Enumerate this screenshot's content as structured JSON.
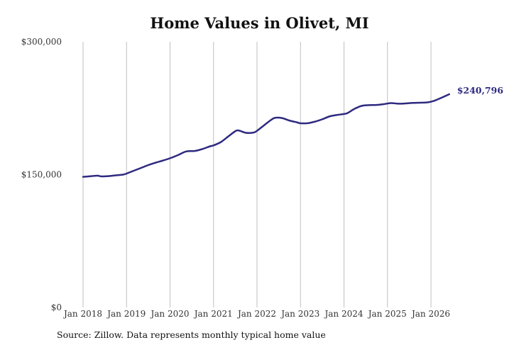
{
  "colors": {
    "line": "#2e2a80",
    "grid": "#bfbfbf"
  },
  "chart_data": {
    "type": "line",
    "title": "Home Values in Olivet, MI",
    "xlabel": "",
    "ylabel": "",
    "ylim": [
      0,
      300000
    ],
    "y_ticks": [
      {
        "value": 0,
        "label": "$0"
      },
      {
        "value": 150000,
        "label": "$150,000"
      },
      {
        "value": 300000,
        "label": "$300,000"
      }
    ],
    "x_ticks": [
      {
        "value": 2018,
        "label": "Jan 2018"
      },
      {
        "value": 2019,
        "label": "Jan 2019"
      },
      {
        "value": 2020,
        "label": "Jan 2020"
      },
      {
        "value": 2021,
        "label": "Jan 2021"
      },
      {
        "value": 2022,
        "label": "Jan 2022"
      },
      {
        "value": 2023,
        "label": "Jan 2023"
      },
      {
        "value": 2024,
        "label": "Jan 2024"
      },
      {
        "value": 2025,
        "label": "Jan 2025"
      },
      {
        "value": 2026,
        "label": "Jan 2026"
      }
    ],
    "grid": "vertical",
    "end_label": "$240,796",
    "series": [
      {
        "points": [
          [
            2018.0,
            147500
          ],
          [
            2018.17,
            148200
          ],
          [
            2018.33,
            148800
          ],
          [
            2018.42,
            148000
          ],
          [
            2018.58,
            148300
          ],
          [
            2018.75,
            149200
          ],
          [
            2018.92,
            150000
          ],
          [
            2019.0,
            151200
          ],
          [
            2019.17,
            154500
          ],
          [
            2019.33,
            157500
          ],
          [
            2019.5,
            160800
          ],
          [
            2019.67,
            163500
          ],
          [
            2019.83,
            165800
          ],
          [
            2020.0,
            168500
          ],
          [
            2020.17,
            171800
          ],
          [
            2020.33,
            175500
          ],
          [
            2020.42,
            176500
          ],
          [
            2020.58,
            176800
          ],
          [
            2020.75,
            179000
          ],
          [
            2020.92,
            182000
          ],
          [
            2021.0,
            183000
          ],
          [
            2021.17,
            186800
          ],
          [
            2021.33,
            192800
          ],
          [
            2021.5,
            199000
          ],
          [
            2021.58,
            199800
          ],
          [
            2021.75,
            197200
          ],
          [
            2021.92,
            197500
          ],
          [
            2022.0,
            199500
          ],
          [
            2022.17,
            206000
          ],
          [
            2022.33,
            212000
          ],
          [
            2022.42,
            214200
          ],
          [
            2022.58,
            213800
          ],
          [
            2022.75,
            211000
          ],
          [
            2022.92,
            209000
          ],
          [
            2023.0,
            208000
          ],
          [
            2023.17,
            208100
          ],
          [
            2023.33,
            209800
          ],
          [
            2023.5,
            212500
          ],
          [
            2023.67,
            215800
          ],
          [
            2023.83,
            217300
          ],
          [
            2024.0,
            218500
          ],
          [
            2024.08,
            219500
          ],
          [
            2024.25,
            224500
          ],
          [
            2024.42,
            227800
          ],
          [
            2024.58,
            228500
          ],
          [
            2024.75,
            228700
          ],
          [
            2024.92,
            229600
          ],
          [
            2025.08,
            230800
          ],
          [
            2025.25,
            230100
          ],
          [
            2025.42,
            230400
          ],
          [
            2025.58,
            231000
          ],
          [
            2025.75,
            231200
          ],
          [
            2025.92,
            231600
          ],
          [
            2026.08,
            233500
          ],
          [
            2026.25,
            237000
          ],
          [
            2026.42,
            240796
          ]
        ]
      }
    ]
  },
  "source_note": "Source: Zillow. Data represents monthly typical home value"
}
